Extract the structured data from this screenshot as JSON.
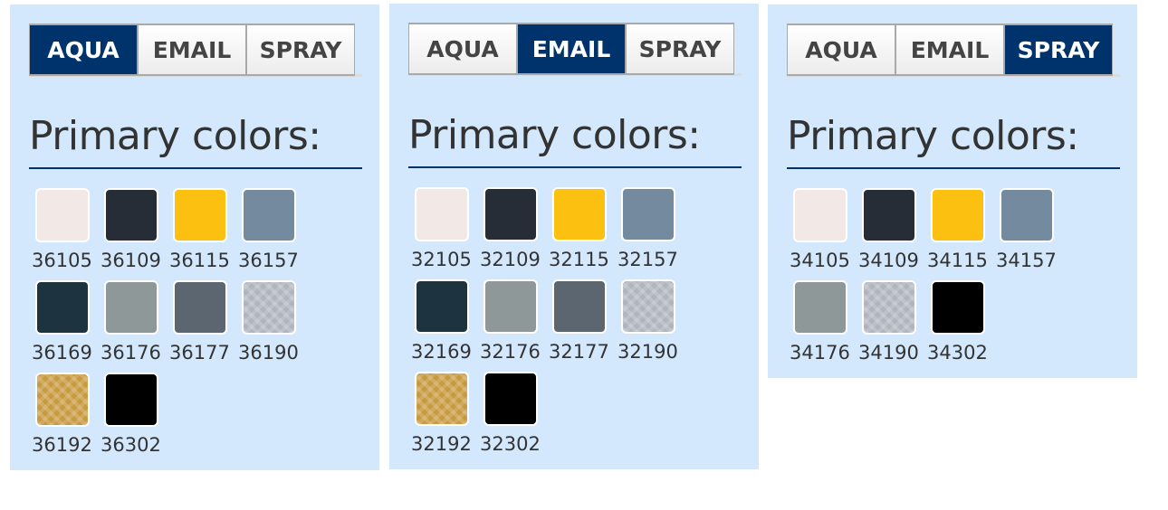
{
  "tab_labels": [
    "AQUA",
    "EMAIL",
    "SPRAY"
  ],
  "heading": "Primary colors:",
  "panels": [
    {
      "active_tab": "AQUA",
      "swatches": [
        {
          "code": "36105",
          "color": "#f2e9e6"
        },
        {
          "code": "36109",
          "color": "#272d36"
        },
        {
          "code": "36115",
          "color": "#fbc010"
        },
        {
          "code": "36157",
          "color": "#748a9e"
        },
        {
          "code": "36169",
          "color": "#1e3340"
        },
        {
          "code": "36176",
          "color": "#8e9899"
        },
        {
          "code": "36177",
          "color": "#5c6670"
        },
        {
          "code": "36190",
          "color": "#b0b5bd",
          "texture": "metallic"
        },
        {
          "code": "36192",
          "color": "#c89a40",
          "texture": "metallic"
        },
        {
          "code": "36302",
          "color": "#000000"
        }
      ]
    },
    {
      "active_tab": "EMAIL",
      "swatches": [
        {
          "code": "32105",
          "color": "#f2e9e6"
        },
        {
          "code": "32109",
          "color": "#272d36"
        },
        {
          "code": "32115",
          "color": "#fbc010"
        },
        {
          "code": "32157",
          "color": "#748a9e"
        },
        {
          "code": "32169",
          "color": "#1e3340"
        },
        {
          "code": "32176",
          "color": "#8e9899"
        },
        {
          "code": "32177",
          "color": "#5c6670"
        },
        {
          "code": "32190",
          "color": "#b0b5bd",
          "texture": "metallic"
        },
        {
          "code": "32192",
          "color": "#c89a40",
          "texture": "metallic"
        },
        {
          "code": "32302",
          "color": "#000000"
        }
      ]
    },
    {
      "active_tab": "SPRAY",
      "swatches": [
        {
          "code": "34105",
          "color": "#f2e9e6"
        },
        {
          "code": "34109",
          "color": "#272d36"
        },
        {
          "code": "34115",
          "color": "#fbc010"
        },
        {
          "code": "34157",
          "color": "#748a9e"
        },
        {
          "code": "34176",
          "color": "#8e9899"
        },
        {
          "code": "34190",
          "color": "#b0b5bd",
          "texture": "metallic"
        },
        {
          "code": "34302",
          "color": "#000000"
        }
      ]
    }
  ],
  "colors": {
    "panel_bg": "#d3e8fd",
    "active_tab": "#00336b"
  }
}
